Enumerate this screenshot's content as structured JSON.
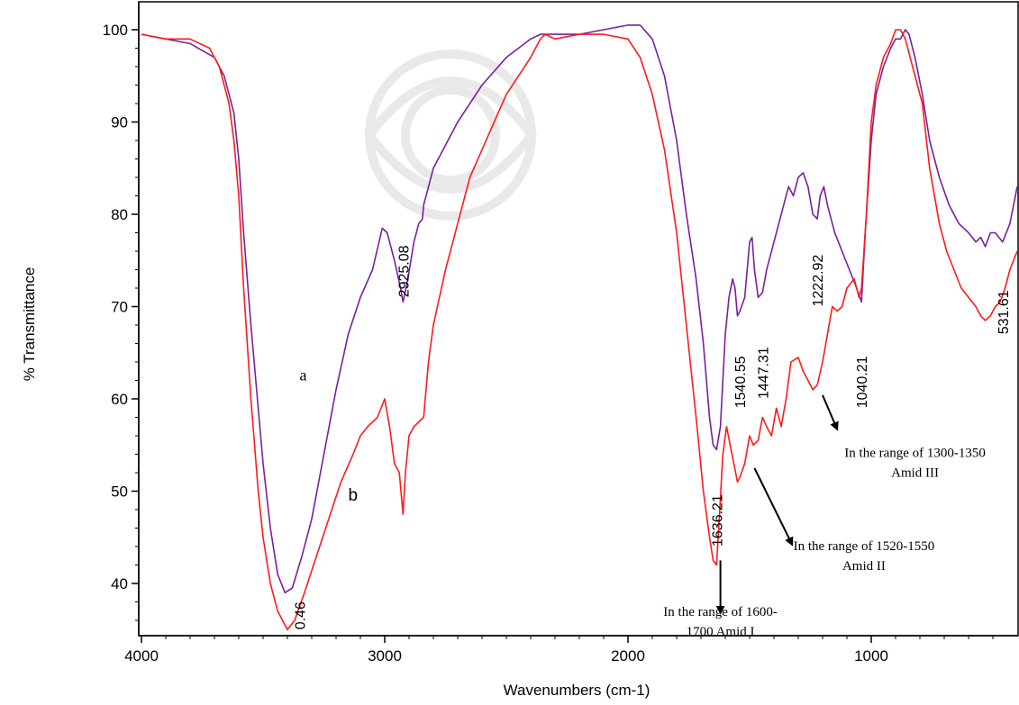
{
  "chart_data": {
    "type": "line",
    "title": "",
    "xlabel": "Wavenumbers (cm-1)",
    "ylabel": "% Transmittance",
    "xlim": [
      4000,
      400
    ],
    "ylim": [
      35,
      101
    ],
    "x_reversed": true,
    "x_ticks": [
      4000,
      3000,
      2000,
      1000
    ],
    "y_ticks": [
      40,
      50,
      60,
      70,
      80,
      90,
      100
    ],
    "grid": false,
    "legend": "none",
    "series": [
      {
        "name": "a",
        "color": "#7a1fa0",
        "points": [
          [
            4000,
            99.5
          ],
          [
            3900,
            99
          ],
          [
            3800,
            98.5
          ],
          [
            3700,
            97
          ],
          [
            3660,
            95
          ],
          [
            3620,
            91
          ],
          [
            3600,
            86
          ],
          [
            3580,
            78
          ],
          [
            3550,
            68
          ],
          [
            3520,
            59
          ],
          [
            3500,
            53
          ],
          [
            3470,
            46
          ],
          [
            3440,
            41
          ],
          [
            3410,
            39
          ],
          [
            3380,
            39.5
          ],
          [
            3340,
            43
          ],
          [
            3300,
            47
          ],
          [
            3250,
            54
          ],
          [
            3200,
            61
          ],
          [
            3150,
            67
          ],
          [
            3100,
            71
          ],
          [
            3050,
            74
          ],
          [
            3010,
            78.5
          ],
          [
            2990,
            78
          ],
          [
            2960,
            75
          ],
          [
            2935,
            72
          ],
          [
            2925,
            70.5
          ],
          [
            2905,
            73
          ],
          [
            2880,
            77
          ],
          [
            2860,
            79
          ],
          [
            2845,
            79.5
          ],
          [
            2840,
            81
          ],
          [
            2800,
            85
          ],
          [
            2700,
            90
          ],
          [
            2600,
            94
          ],
          [
            2500,
            97
          ],
          [
            2400,
            99
          ],
          [
            2360,
            99.5
          ],
          [
            2300,
            99.5
          ],
          [
            2200,
            99.5
          ],
          [
            2100,
            100
          ],
          [
            2000,
            100.5
          ],
          [
            1950,
            100.5
          ],
          [
            1900,
            99
          ],
          [
            1850,
            95
          ],
          [
            1800,
            88
          ],
          [
            1760,
            80
          ],
          [
            1720,
            73
          ],
          [
            1690,
            66
          ],
          [
            1665,
            58
          ],
          [
            1650,
            55
          ],
          [
            1636,
            54.5
          ],
          [
            1620,
            57
          ],
          [
            1600,
            67
          ],
          [
            1585,
            71
          ],
          [
            1570,
            73
          ],
          [
            1560,
            72
          ],
          [
            1550,
            69
          ],
          [
            1540,
            69.5
          ],
          [
            1520,
            71
          ],
          [
            1500,
            77
          ],
          [
            1490,
            77.5
          ],
          [
            1480,
            74
          ],
          [
            1465,
            71
          ],
          [
            1447,
            71.5
          ],
          [
            1430,
            74
          ],
          [
            1400,
            77
          ],
          [
            1380,
            79
          ],
          [
            1360,
            81
          ],
          [
            1340,
            83
          ],
          [
            1320,
            82
          ],
          [
            1300,
            84
          ],
          [
            1280,
            84.5
          ],
          [
            1260,
            83
          ],
          [
            1240,
            80
          ],
          [
            1222,
            79.5
          ],
          [
            1210,
            82
          ],
          [
            1195,
            83
          ],
          [
            1180,
            81
          ],
          [
            1150,
            78
          ],
          [
            1120,
            76
          ],
          [
            1090,
            74
          ],
          [
            1060,
            72
          ],
          [
            1040,
            70.5
          ],
          [
            1025,
            78
          ],
          [
            1000,
            88
          ],
          [
            980,
            93
          ],
          [
            950,
            96
          ],
          [
            920,
            98
          ],
          [
            900,
            99
          ],
          [
            880,
            99
          ],
          [
            860,
            100
          ],
          [
            845,
            99.5
          ],
          [
            820,
            97
          ],
          [
            790,
            93
          ],
          [
            760,
            88
          ],
          [
            720,
            84
          ],
          [
            680,
            81
          ],
          [
            640,
            79
          ],
          [
            600,
            78
          ],
          [
            570,
            77
          ],
          [
            550,
            77.5
          ],
          [
            531,
            76.5
          ],
          [
            510,
            78
          ],
          [
            490,
            78
          ],
          [
            460,
            77
          ],
          [
            430,
            79
          ],
          [
            400,
            83
          ]
        ]
      },
      {
        "name": "b",
        "color": "#ff1a1a",
        "points": [
          [
            4000,
            99.5
          ],
          [
            3900,
            99
          ],
          [
            3800,
            99
          ],
          [
            3720,
            98
          ],
          [
            3680,
            96
          ],
          [
            3640,
            92
          ],
          [
            3620,
            88
          ],
          [
            3600,
            82
          ],
          [
            3580,
            72
          ],
          [
            3550,
            60
          ],
          [
            3520,
            50
          ],
          [
            3500,
            45
          ],
          [
            3470,
            40
          ],
          [
            3440,
            37
          ],
          [
            3400,
            35
          ],
          [
            3370,
            36
          ],
          [
            3330,
            39
          ],
          [
            3280,
            43
          ],
          [
            3230,
            47
          ],
          [
            3180,
            51
          ],
          [
            3130,
            54
          ],
          [
            3100,
            56
          ],
          [
            3070,
            57
          ],
          [
            3030,
            58
          ],
          [
            3000,
            60
          ],
          [
            2980,
            57
          ],
          [
            2960,
            53
          ],
          [
            2940,
            52
          ],
          [
            2925,
            47.5
          ],
          [
            2915,
            52
          ],
          [
            2900,
            56
          ],
          [
            2880,
            57
          ],
          [
            2860,
            57.5
          ],
          [
            2840,
            58
          ],
          [
            2820,
            64
          ],
          [
            2800,
            68
          ],
          [
            2750,
            74
          ],
          [
            2700,
            79
          ],
          [
            2650,
            84
          ],
          [
            2600,
            87
          ],
          [
            2550,
            90
          ],
          [
            2500,
            93
          ],
          [
            2450,
            95
          ],
          [
            2400,
            97
          ],
          [
            2360,
            99
          ],
          [
            2340,
            99.5
          ],
          [
            2300,
            99
          ],
          [
            2200,
            99.5
          ],
          [
            2100,
            99.5
          ],
          [
            2000,
            99
          ],
          [
            1950,
            97
          ],
          [
            1900,
            93
          ],
          [
            1850,
            87
          ],
          [
            1800,
            78
          ],
          [
            1760,
            68
          ],
          [
            1720,
            58
          ],
          [
            1690,
            50
          ],
          [
            1665,
            45
          ],
          [
            1650,
            42.5
          ],
          [
            1636,
            42
          ],
          [
            1625,
            47
          ],
          [
            1610,
            54
          ],
          [
            1595,
            57
          ],
          [
            1580,
            55
          ],
          [
            1565,
            53
          ],
          [
            1550,
            51
          ],
          [
            1540,
            51.5
          ],
          [
            1520,
            53
          ],
          [
            1500,
            56
          ],
          [
            1485,
            55
          ],
          [
            1465,
            55.5
          ],
          [
            1447,
            58
          ],
          [
            1430,
            57
          ],
          [
            1410,
            56
          ],
          [
            1390,
            59
          ],
          [
            1370,
            57
          ],
          [
            1350,
            60
          ],
          [
            1330,
            64
          ],
          [
            1300,
            64.5
          ],
          [
            1280,
            63
          ],
          [
            1260,
            62
          ],
          [
            1240,
            61
          ],
          [
            1222,
            61.5
          ],
          [
            1200,
            64
          ],
          [
            1180,
            67
          ],
          [
            1160,
            70
          ],
          [
            1140,
            69.5
          ],
          [
            1120,
            70
          ],
          [
            1100,
            72
          ],
          [
            1070,
            73
          ],
          [
            1050,
            71
          ],
          [
            1040,
            72
          ],
          [
            1020,
            80
          ],
          [
            1000,
            90
          ],
          [
            980,
            94
          ],
          [
            950,
            97
          ],
          [
            920,
            98.5
          ],
          [
            900,
            100
          ],
          [
            880,
            100
          ],
          [
            860,
            99
          ],
          [
            840,
            97
          ],
          [
            820,
            95
          ],
          [
            790,
            92
          ],
          [
            760,
            85
          ],
          [
            720,
            79
          ],
          [
            690,
            76
          ],
          [
            660,
            74
          ],
          [
            630,
            72
          ],
          [
            600,
            71
          ],
          [
            570,
            70
          ],
          [
            550,
            69
          ],
          [
            531,
            68.5
          ],
          [
            510,
            69
          ],
          [
            490,
            70
          ],
          [
            470,
            70.5
          ],
          [
            450,
            72
          ],
          [
            430,
            74
          ],
          [
            400,
            76
          ]
        ]
      }
    ],
    "curve_labels": [
      {
        "text": "a",
        "x": 3350,
        "y": 62,
        "font": "serif"
      },
      {
        "text": "b",
        "x": 3150,
        "y": 49,
        "font": "sans"
      }
    ],
    "peak_labels": [
      {
        "text": "0.46",
        "x": 3350,
        "y": 35
      },
      {
        "text": "2925.08",
        "x": 2925,
        "y": 71
      },
      {
        "text": "1636.21",
        "x": 1636,
        "y": 44
      },
      {
        "text": "1540.55",
        "x": 1540,
        "y": 59
      },
      {
        "text": "1447.31",
        "x": 1447,
        "y": 60
      },
      {
        "text": "1222.92",
        "x": 1222,
        "y": 70
      },
      {
        "text": "1040.21",
        "x": 1040,
        "y": 59
      },
      {
        "text": "531.61",
        "x": 460,
        "y": 67
      }
    ],
    "annotations": [
      {
        "lines": [
          "In the range of 1600-",
          "1700 Amid I"
        ],
        "text_x": 1620,
        "text_y": 36.5
      },
      {
        "lines": [
          "In the range of 1520-1550",
          "Amid II"
        ],
        "text_x": 1030,
        "text_y": 43.6
      },
      {
        "lines": [
          "In the range of 1300-1350",
          "Amid III"
        ],
        "text_x": 820,
        "text_y": 53.7
      }
    ],
    "arrows": [
      {
        "from": [
          1620,
          42.5
        ],
        "to": [
          1620,
          36.8
        ]
      },
      {
        "from": [
          1480,
          52.5
        ],
        "to": [
          1325,
          44.2
        ]
      },
      {
        "from": [
          1200,
          60.4
        ],
        "to": [
          1140,
          56.7
        ]
      }
    ]
  }
}
